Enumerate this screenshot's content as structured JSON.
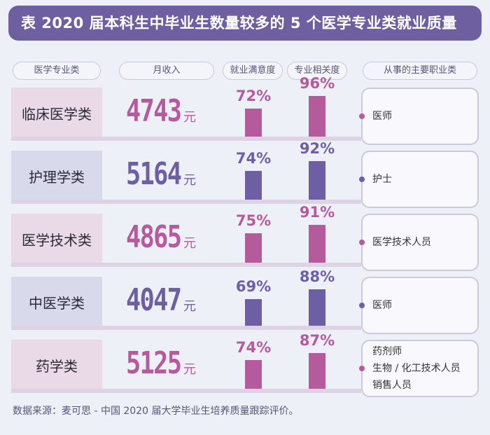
{
  "title": "表  2020 届本科生中毕业生数量较多的 5 个医学专业类就业质量",
  "headers": {
    "category": "医学专业类",
    "income": "月收入",
    "satisfaction": "就业满意度",
    "relevance": "专业相关度",
    "jobs": "从事的主要职业类"
  },
  "unit": "元",
  "colors": {
    "pink": "#b55a9c",
    "purple": "#6e5fa5",
    "pink_cell": "#ead9e7",
    "purple_cell": "#d9d9ec"
  },
  "source": "数据来源：麦可思 - 中国 2020 届大学毕业生培养质量跟踪评价。",
  "chart_data": {
    "type": "table",
    "title": "表  2020 届本科生中毕业生数量较多的 5 个医学专业类就业质量",
    "columns": [
      "医学专业类",
      "月收入",
      "就业满意度",
      "专业相关度",
      "从事的主要职业类"
    ],
    "rows": [
      {
        "category": "临床医学类",
        "income": "4743",
        "satisfaction": "72%",
        "satisfaction_value": 72,
        "relevance": "96%",
        "relevance_value": 96,
        "jobs": [
          "医师"
        ],
        "theme": "pink"
      },
      {
        "category": "护理学类",
        "income": "5164",
        "satisfaction": "74%",
        "satisfaction_value": 74,
        "relevance": "92%",
        "relevance_value": 92,
        "jobs": [
          "护士"
        ],
        "theme": "purple"
      },
      {
        "category": "医学技术类",
        "income": "4865",
        "satisfaction": "75%",
        "satisfaction_value": 75,
        "relevance": "91%",
        "relevance_value": 91,
        "jobs": [
          "医学技术人员"
        ],
        "theme": "pink"
      },
      {
        "category": "中医学类",
        "income": "4047",
        "satisfaction": "69%",
        "satisfaction_value": 69,
        "relevance": "88%",
        "relevance_value": 88,
        "jobs": [
          "医师"
        ],
        "theme": "purple"
      },
      {
        "category": "药学类",
        "income": "5125",
        "satisfaction": "74%",
        "satisfaction_value": 74,
        "relevance": "87%",
        "relevance_value": 87,
        "jobs": [
          "药剂师",
          "生物 / 化工技术人员",
          "销售人员"
        ],
        "theme": "pink"
      }
    ]
  }
}
